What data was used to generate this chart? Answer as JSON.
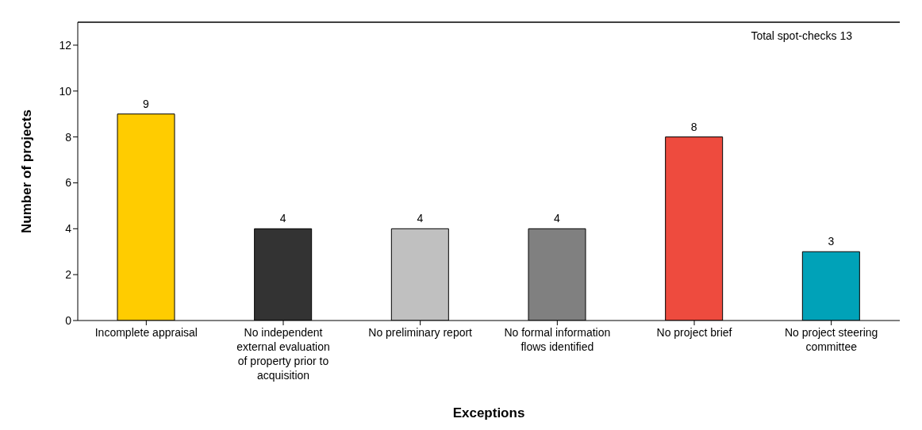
{
  "chart_data": {
    "type": "bar",
    "xlabel": "Exceptions",
    "ylabel": "Number of projects",
    "categories": [
      "Incomplete appraisal",
      "No independent external evaluation of property prior to acquisition",
      "No preliminary report",
      "No formal information flows identified",
      "No project brief",
      "No project steering committee"
    ],
    "values": [
      9,
      4,
      4,
      4,
      8,
      3
    ],
    "colors": [
      "#ffcc00",
      "#333333",
      "#c0c0c0",
      "#808080",
      "#ee4b3e",
      "#00a2b8"
    ],
    "ylim": [
      0,
      13
    ],
    "yticks": [
      0,
      2,
      4,
      6,
      8,
      10,
      12
    ],
    "grid": false,
    "legend": false,
    "data_labels": true,
    "ref_lines": [
      {
        "axis": "y",
        "value": 13,
        "label": "Total spot-checks 13",
        "color": "#000000"
      }
    ]
  }
}
